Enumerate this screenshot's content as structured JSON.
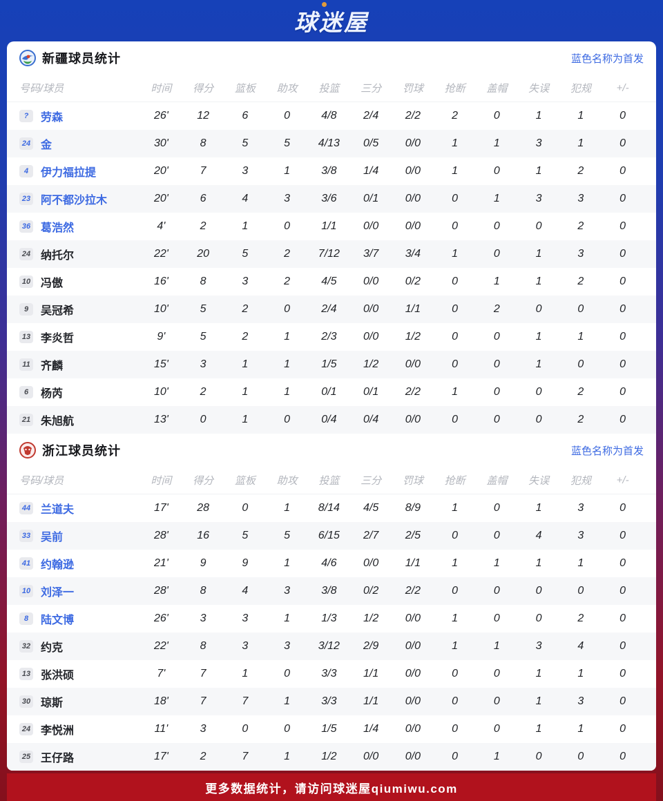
{
  "header": {
    "logo_text": "球迷屋"
  },
  "legend": "蓝色名称为首发",
  "columns": [
    "号码/球员",
    "时间",
    "得分",
    "篮板",
    "助攻",
    "投篮",
    "三分",
    "罚球",
    "抢断",
    "盖帽",
    "失误",
    "犯规",
    "+/-"
  ],
  "tables": [
    {
      "title": "新疆球员统计",
      "team": "xinjiang",
      "rows": [
        {
          "num": "?",
          "name": "劳森",
          "starter": true,
          "stats": [
            "26'",
            "12",
            "6",
            "0",
            "4/8",
            "2/4",
            "2/2",
            "2",
            "0",
            "1",
            "1",
            "0"
          ]
        },
        {
          "num": "24",
          "name": "金",
          "starter": true,
          "stats": [
            "30'",
            "8",
            "5",
            "5",
            "4/13",
            "0/5",
            "0/0",
            "1",
            "1",
            "3",
            "1",
            "0"
          ]
        },
        {
          "num": "4",
          "name": "伊力福拉提",
          "starter": true,
          "stats": [
            "20'",
            "7",
            "3",
            "1",
            "3/8",
            "1/4",
            "0/0",
            "1",
            "0",
            "1",
            "2",
            "0"
          ]
        },
        {
          "num": "23",
          "name": "阿不都沙拉木",
          "starter": true,
          "stats": [
            "20'",
            "6",
            "4",
            "3",
            "3/6",
            "0/1",
            "0/0",
            "0",
            "1",
            "3",
            "3",
            "0"
          ]
        },
        {
          "num": "36",
          "name": "葛浩然",
          "starter": true,
          "stats": [
            "4'",
            "2",
            "1",
            "0",
            "1/1",
            "0/0",
            "0/0",
            "0",
            "0",
            "0",
            "2",
            "0"
          ]
        },
        {
          "num": "24",
          "name": "纳托尔",
          "starter": false,
          "stats": [
            "22'",
            "20",
            "5",
            "2",
            "7/12",
            "3/7",
            "3/4",
            "1",
            "0",
            "1",
            "3",
            "0"
          ]
        },
        {
          "num": "10",
          "name": "冯傲",
          "starter": false,
          "stats": [
            "16'",
            "8",
            "3",
            "2",
            "4/5",
            "0/0",
            "0/2",
            "0",
            "1",
            "1",
            "2",
            "0"
          ]
        },
        {
          "num": "9",
          "name": "吴冠希",
          "starter": false,
          "stats": [
            "10'",
            "5",
            "2",
            "0",
            "2/4",
            "0/0",
            "1/1",
            "0",
            "2",
            "0",
            "0",
            "0"
          ]
        },
        {
          "num": "13",
          "name": "李炎哲",
          "starter": false,
          "stats": [
            "9'",
            "5",
            "2",
            "1",
            "2/3",
            "0/0",
            "1/2",
            "0",
            "0",
            "1",
            "1",
            "0"
          ]
        },
        {
          "num": "11",
          "name": "齐麟",
          "starter": false,
          "stats": [
            "15'",
            "3",
            "1",
            "1",
            "1/5",
            "1/2",
            "0/0",
            "0",
            "0",
            "1",
            "0",
            "0"
          ]
        },
        {
          "num": "6",
          "name": "杨芮",
          "starter": false,
          "stats": [
            "10'",
            "2",
            "1",
            "1",
            "0/1",
            "0/1",
            "2/2",
            "1",
            "0",
            "0",
            "2",
            "0"
          ]
        },
        {
          "num": "21",
          "name": "朱旭航",
          "starter": false,
          "stats": [
            "13'",
            "0",
            "1",
            "0",
            "0/4",
            "0/4",
            "0/0",
            "0",
            "0",
            "0",
            "2",
            "0"
          ]
        }
      ]
    },
    {
      "title": "浙江球员统计",
      "team": "zhejiang",
      "rows": [
        {
          "num": "44",
          "name": "兰道夫",
          "starter": true,
          "stats": [
            "17'",
            "28",
            "0",
            "1",
            "8/14",
            "4/5",
            "8/9",
            "1",
            "0",
            "1",
            "3",
            "0"
          ]
        },
        {
          "num": "33",
          "name": "吴前",
          "starter": true,
          "stats": [
            "28'",
            "16",
            "5",
            "5",
            "6/15",
            "2/7",
            "2/5",
            "0",
            "0",
            "4",
            "3",
            "0"
          ]
        },
        {
          "num": "41",
          "name": "约翰逊",
          "starter": true,
          "stats": [
            "21'",
            "9",
            "9",
            "1",
            "4/6",
            "0/0",
            "1/1",
            "1",
            "1",
            "1",
            "1",
            "0"
          ]
        },
        {
          "num": "10",
          "name": "刘泽一",
          "starter": true,
          "stats": [
            "28'",
            "8",
            "4",
            "3",
            "3/8",
            "0/2",
            "2/2",
            "0",
            "0",
            "0",
            "0",
            "0"
          ]
        },
        {
          "num": "8",
          "name": "陆文博",
          "starter": true,
          "stats": [
            "26'",
            "3",
            "3",
            "1",
            "1/3",
            "1/2",
            "0/0",
            "1",
            "0",
            "0",
            "2",
            "0"
          ]
        },
        {
          "num": "32",
          "name": "约克",
          "starter": false,
          "stats": [
            "22'",
            "8",
            "3",
            "3",
            "3/12",
            "2/9",
            "0/0",
            "1",
            "1",
            "3",
            "4",
            "0"
          ]
        },
        {
          "num": "13",
          "name": "张洪硕",
          "starter": false,
          "stats": [
            "7'",
            "7",
            "1",
            "0",
            "3/3",
            "1/1",
            "0/0",
            "0",
            "0",
            "1",
            "1",
            "0"
          ]
        },
        {
          "num": "30",
          "name": "琼斯",
          "starter": false,
          "stats": [
            "18'",
            "7",
            "7",
            "1",
            "3/3",
            "1/1",
            "0/0",
            "0",
            "0",
            "1",
            "3",
            "0"
          ]
        },
        {
          "num": "24",
          "name": "李悦洲",
          "starter": false,
          "stats": [
            "11'",
            "3",
            "0",
            "0",
            "1/5",
            "1/4",
            "0/0",
            "0",
            "0",
            "1",
            "1",
            "0"
          ]
        },
        {
          "num": "25",
          "name": "王仔路",
          "starter": false,
          "stats": [
            "17'",
            "2",
            "7",
            "1",
            "1/2",
            "0/0",
            "0/0",
            "0",
            "1",
            "0",
            "0",
            "0"
          ]
        }
      ]
    }
  ],
  "footer": {
    "text": "更多数据统计，请访问球迷屋qiumiwu.com"
  },
  "colors": {
    "accent_blue": "#3d6ae2",
    "header_blue": "#1641b8",
    "footer_red": "#b1121d"
  }
}
